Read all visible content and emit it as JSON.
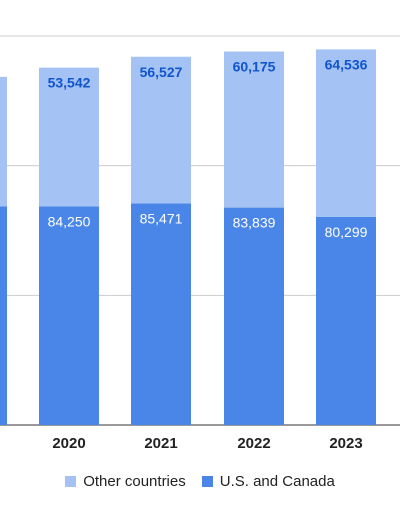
{
  "chart_data": {
    "type": "bar",
    "stacked": true,
    "categories": [
      "",
      "2020",
      "2021",
      "2022",
      "2023"
    ],
    "series": [
      {
        "name": "U.S. and Canada",
        "color": "#4a86e8",
        "values": [
          84250,
          84250,
          85471,
          83839,
          80299
        ],
        "labels": [
          "",
          "84,250",
          "85,471",
          "83,839",
          "80,299"
        ],
        "label_color": "#ffffff"
      },
      {
        "name": "Other countries",
        "color": "#a4c2f4",
        "values": [
          50000,
          53542,
          56527,
          60175,
          64536
        ],
        "labels": [
          "",
          "53,542",
          "56,527",
          "60,175",
          "64,536"
        ],
        "label_color": "#1155cc"
      }
    ],
    "ylim": [
      0,
      150000
    ],
    "grid": true,
    "legend": "bottom"
  }
}
